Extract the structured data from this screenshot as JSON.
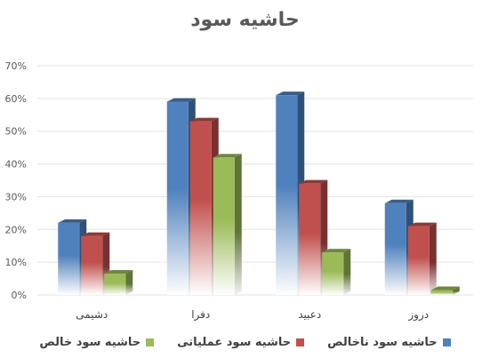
{
  "chart_data": {
    "type": "bar",
    "title": "حاشیه سود",
    "categories": [
      "دشیمی",
      "دفرا",
      "دعبید",
      "دروز"
    ],
    "y_tick_labels": [
      "0%",
      "10%",
      "20%",
      "30%",
      "40%",
      "50%",
      "60%",
      "70%"
    ],
    "ylim": [
      0,
      70
    ],
    "grid": true,
    "legend_position": "bottom",
    "series": [
      {
        "name": "حاشیه سود ناخالص",
        "color": "#4f81bd",
        "values": [
          22,
          59,
          61,
          28
        ]
      },
      {
        "name": "حاشیه سود عملیاتی",
        "color": "#c0504d",
        "values": [
          18,
          53,
          34,
          21
        ]
      },
      {
        "name": "حاشیه سود خالص",
        "color": "#9bbb59",
        "values": [
          6.5,
          42,
          13,
          1.5
        ]
      }
    ]
  }
}
